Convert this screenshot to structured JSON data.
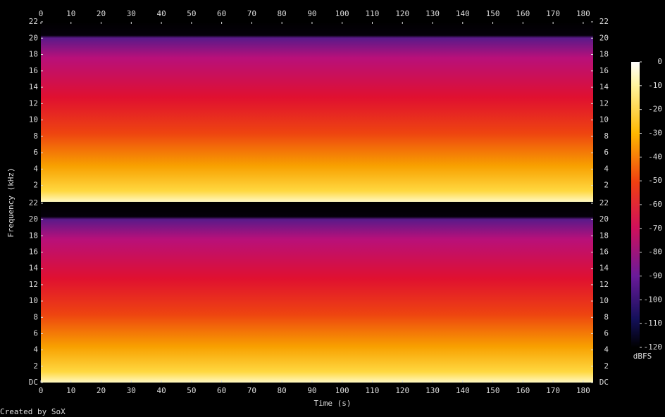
{
  "chart_data": {
    "type": "spectrogram",
    "xlabel": "Time (s)",
    "ylabel": "Frequency (kHz)",
    "footer": "Created by SoX",
    "xlim": [
      0,
      183.3
    ],
    "xticks": [
      0,
      10,
      20,
      30,
      40,
      50,
      60,
      70,
      80,
      90,
      100,
      110,
      120,
      130,
      140,
      150,
      160,
      170,
      180
    ],
    "panels": [
      {
        "ylim": [
          0,
          22
        ],
        "yticks": [
          2,
          4,
          6,
          8,
          10,
          12,
          14,
          16,
          18,
          20,
          22
        ]
      },
      {
        "ylim": [
          0,
          22
        ],
        "yticks": [
          {
            "value": 0,
            "label": "DC"
          },
          2,
          4,
          6,
          8,
          10,
          12,
          14,
          16,
          18,
          20,
          22
        ]
      }
    ],
    "colorbar": {
      "label": "dBFS",
      "lim": [
        -120,
        0
      ],
      "ticks": [
        0,
        -10,
        -20,
        -30,
        -40,
        -50,
        -60,
        -70,
        -80,
        -90,
        -100,
        -110,
        -120
      ]
    }
  }
}
